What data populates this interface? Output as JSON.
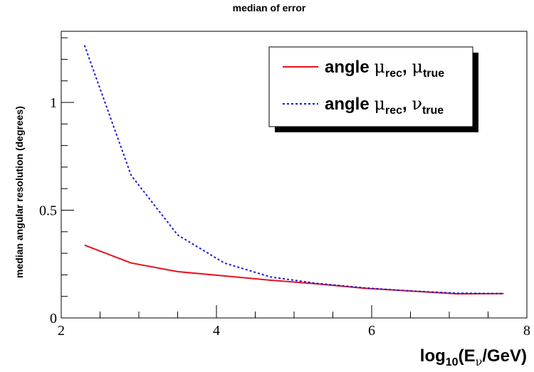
{
  "chart_data": {
    "type": "line",
    "title": "median of error",
    "xlabel": {
      "prefix": "log",
      "sub1": "10",
      "mid": "(E",
      "sub2": "ν",
      "suffix": "/GeV)"
    },
    "ylabel": "median angular resolution (degrees)",
    "xlim": [
      2,
      8
    ],
    "ylim": [
      0,
      1.33
    ],
    "x_ticks": [
      2,
      4,
      6,
      8
    ],
    "x_tick_labels": [
      "2",
      "4",
      "6",
      "8"
    ],
    "y_ticks": [
      0,
      0.5,
      1
    ],
    "y_tick_labels": [
      "0",
      "0.5",
      "1"
    ],
    "grid": false,
    "legend_position": "top-right",
    "series": [
      {
        "legend": {
          "prefix": "angle ",
          "sym1": "μ",
          "sub1": "rec",
          "sep": ", ",
          "sym2": "μ",
          "sub2": "true"
        },
        "color": "#e8111c",
        "dash": "solid",
        "x": [
          2.3,
          2.9,
          3.5,
          4.1,
          4.7,
          5.3,
          5.9,
          6.5,
          7.1,
          7.7
        ],
        "y": [
          0.338,
          0.255,
          0.215,
          0.195,
          0.175,
          0.158,
          0.138,
          0.125,
          0.112,
          0.113
        ]
      },
      {
        "legend": {
          "prefix": "angle ",
          "sym1": "μ",
          "sub1": "rec",
          "sep": ", ",
          "sym2": "ν",
          "sub2": "true"
        },
        "color": "#1c1cd9",
        "dash": "dotted",
        "x": [
          2.3,
          2.9,
          3.5,
          4.1,
          4.7,
          5.3,
          5.9,
          6.5,
          7.1,
          7.7
        ],
        "y": [
          1.265,
          0.662,
          0.385,
          0.255,
          0.19,
          0.16,
          0.14,
          0.125,
          0.115,
          0.113
        ]
      }
    ]
  }
}
